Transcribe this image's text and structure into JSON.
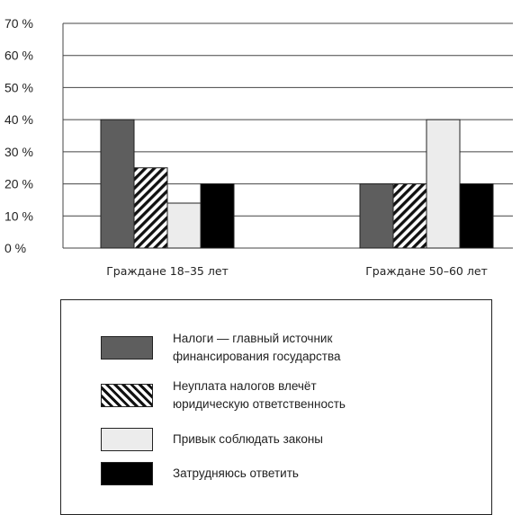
{
  "chart_data": {
    "type": "bar",
    "categories": [
      "Граждане 18–35 лет",
      "Граждане 50–60 лет"
    ],
    "series": [
      {
        "name": "Налоги — главный источник финансирования государства",
        "values": [
          40,
          20
        ],
        "color": "#5e5e5e",
        "pattern": "solid"
      },
      {
        "name": "Неуплата налогов влечёт юридическую ответственность",
        "values": [
          25,
          20
        ],
        "color": "#111111",
        "pattern": "diagonal-hatch"
      },
      {
        "name": "Привык соблюдать законы",
        "values": [
          14,
          40
        ],
        "color": "#ececec",
        "pattern": "solid"
      },
      {
        "name": "Затрудняюсь ответить",
        "values": [
          20,
          20
        ],
        "color": "#000000",
        "pattern": "solid"
      }
    ],
    "ylim": [
      0,
      70
    ],
    "yticks": [
      "0 %",
      "10 %",
      "20 %",
      "30 %",
      "40 %",
      "50 %",
      "60 %",
      "70 %"
    ],
    "ytick_values": [
      0,
      10,
      20,
      30,
      40,
      50,
      60,
      70
    ],
    "grid": true,
    "legend_position": "bottom"
  },
  "legend": [
    {
      "line1": "Налоги — главный источник",
      "line2": "финансирования государства"
    },
    {
      "line1": "Неуплата налогов влечёт",
      "line2": "юридическую ответственность"
    },
    {
      "line1": "Привык соблюдать законы",
      "line2": ""
    },
    {
      "line1": "Затрудняюсь  ответить",
      "line2": ""
    }
  ]
}
